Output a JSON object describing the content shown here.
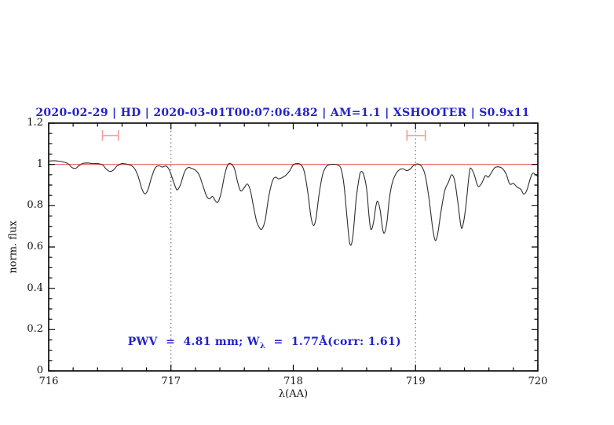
{
  "chart_data": {
    "type": "line",
    "title": "2020-02-29 | HD | 2020-03-01T00:07:06.482 | AM=1.1 | XSHOOTER | S0.9x11",
    "xlabel": "λ(AA)",
    "ylabel": "norm. flux",
    "xlim": [
      716,
      720
    ],
    "ylim": [
      0,
      1.2
    ],
    "grid": "off",
    "legend": "none",
    "x_ticks": {
      "major": [
        716,
        717,
        718,
        719,
        720
      ],
      "labels": [
        "716",
        "717",
        "718",
        "719",
        "720"
      ],
      "minor_step": 0.2
    },
    "y_ticks": {
      "major": [
        0,
        0.2,
        0.4,
        0.6,
        0.8,
        1,
        1.2
      ],
      "labels": [
        "0",
        "0.2",
        "0.4",
        "0.6",
        "0.8",
        "1",
        "1.2"
      ],
      "minor_step": 0.05
    },
    "reference_line_y": 1.0,
    "dotted_vlines_x": [
      717,
      719
    ],
    "range_markers": [
      {
        "x_from": 716.44,
        "x_to": 716.57,
        "y": 1.14,
        "cap_half_height": 0.026
      },
      {
        "x_from": 718.93,
        "x_to": 719.08,
        "y": 1.14,
        "cap_half_height": 0.026
      }
    ],
    "colors": {
      "spectrum": "#2e2e2e",
      "reference_line": "#e85c5c",
      "range_markers": "#f2a2a2",
      "dotted_lines": "#4a4a4a",
      "axis": "#000000",
      "title_blue": "#2222cc"
    },
    "series": [
      {
        "name": "normalized-telluric-spectrum",
        "points": [
          [
            716.0,
            1.016
          ],
          [
            716.04,
            1.018
          ],
          [
            716.08,
            1.016
          ],
          [
            716.12,
            1.012
          ],
          [
            716.16,
            1.003
          ],
          [
            716.19,
            0.985
          ],
          [
            716.22,
            0.981
          ],
          [
            716.25,
            0.995
          ],
          [
            716.28,
            1.005
          ],
          [
            716.32,
            1.007
          ],
          [
            716.36,
            1.004
          ],
          [
            716.4,
            1.004
          ],
          [
            716.44,
            0.998
          ],
          [
            716.47,
            0.978
          ],
          [
            716.5,
            0.966
          ],
          [
            716.53,
            0.973
          ],
          [
            716.56,
            0.993
          ],
          [
            716.6,
            1.004
          ],
          [
            716.64,
            1.001
          ],
          [
            716.67,
            0.996
          ],
          [
            716.7,
            0.982
          ],
          [
            716.73,
            0.945
          ],
          [
            716.76,
            0.885
          ],
          [
            716.785,
            0.858
          ],
          [
            716.81,
            0.875
          ],
          [
            716.84,
            0.935
          ],
          [
            716.87,
            0.982
          ],
          [
            716.9,
            0.993
          ],
          [
            716.93,
            0.987
          ],
          [
            716.96,
            0.992
          ],
          [
            716.985,
            0.975
          ],
          [
            717.01,
            0.935
          ],
          [
            717.04,
            0.885
          ],
          [
            717.055,
            0.878
          ],
          [
            717.08,
            0.905
          ],
          [
            717.11,
            0.962
          ],
          [
            717.14,
            0.985
          ],
          [
            717.17,
            0.98
          ],
          [
            717.2,
            0.972
          ],
          [
            717.23,
            0.95
          ],
          [
            717.26,
            0.9
          ],
          [
            717.29,
            0.848
          ],
          [
            717.315,
            0.833
          ],
          [
            717.34,
            0.845
          ],
          [
            717.365,
            0.822
          ],
          [
            717.385,
            0.818
          ],
          [
            717.41,
            0.862
          ],
          [
            717.44,
            0.952
          ],
          [
            717.465,
            0.998
          ],
          [
            717.49,
            1.003
          ],
          [
            717.52,
            0.978
          ],
          [
            717.545,
            0.915
          ],
          [
            717.57,
            0.872
          ],
          [
            717.6,
            0.888
          ],
          [
            717.625,
            0.905
          ],
          [
            717.65,
            0.872
          ],
          [
            717.675,
            0.795
          ],
          [
            717.7,
            0.725
          ],
          [
            717.725,
            0.692
          ],
          [
            717.745,
            0.688
          ],
          [
            717.77,
            0.73
          ],
          [
            717.8,
            0.845
          ],
          [
            717.83,
            0.92
          ],
          [
            717.855,
            0.938
          ],
          [
            717.88,
            0.93
          ],
          [
            717.91,
            0.936
          ],
          [
            717.94,
            0.948
          ],
          [
            717.97,
            0.968
          ],
          [
            718.0,
            0.998
          ],
          [
            718.03,
            1.004
          ],
          [
            718.06,
            1.0
          ],
          [
            718.09,
            0.965
          ],
          [
            718.12,
            0.86
          ],
          [
            718.145,
            0.745
          ],
          [
            718.165,
            0.705
          ],
          [
            718.185,
            0.735
          ],
          [
            718.21,
            0.85
          ],
          [
            718.24,
            0.95
          ],
          [
            718.27,
            0.99
          ],
          [
            718.3,
            0.999
          ],
          [
            718.33,
            1.001
          ],
          [
            718.36,
            0.998
          ],
          [
            718.39,
            0.98
          ],
          [
            718.415,
            0.9
          ],
          [
            718.44,
            0.74
          ],
          [
            718.46,
            0.625
          ],
          [
            718.475,
            0.613
          ],
          [
            718.49,
            0.665
          ],
          [
            718.515,
            0.835
          ],
          [
            718.54,
            0.94
          ],
          [
            718.555,
            0.965
          ],
          [
            718.575,
            0.952
          ],
          [
            718.6,
            0.88
          ],
          [
            718.62,
            0.745
          ],
          [
            718.635,
            0.685
          ],
          [
            718.655,
            0.715
          ],
          [
            718.675,
            0.795
          ],
          [
            718.69,
            0.822
          ],
          [
            718.71,
            0.78
          ],
          [
            718.73,
            0.69
          ],
          [
            718.745,
            0.668
          ],
          [
            718.765,
            0.715
          ],
          [
            718.785,
            0.83
          ],
          [
            718.81,
            0.912
          ],
          [
            718.84,
            0.955
          ],
          [
            718.87,
            0.975
          ],
          [
            718.9,
            0.978
          ],
          [
            718.93,
            0.97
          ],
          [
            718.96,
            0.98
          ],
          [
            718.99,
            0.998
          ],
          [
            719.02,
            1.002
          ],
          [
            719.05,
            0.99
          ],
          [
            719.08,
            0.945
          ],
          [
            719.11,
            0.835
          ],
          [
            719.14,
            0.69
          ],
          [
            719.16,
            0.633
          ],
          [
            719.18,
            0.66
          ],
          [
            719.21,
            0.78
          ],
          [
            719.24,
            0.875
          ],
          [
            719.27,
            0.915
          ],
          [
            719.295,
            0.95
          ],
          [
            719.32,
            0.92
          ],
          [
            719.345,
            0.82
          ],
          [
            719.37,
            0.705
          ],
          [
            719.385,
            0.7
          ],
          [
            719.41,
            0.79
          ],
          [
            719.44,
            0.96
          ],
          [
            719.455,
            0.98
          ],
          [
            719.48,
            0.95
          ],
          [
            719.51,
            0.895
          ],
          [
            719.54,
            0.908
          ],
          [
            719.57,
            0.945
          ],
          [
            719.595,
            0.938
          ],
          [
            719.62,
            0.96
          ],
          [
            719.65,
            0.985
          ],
          [
            719.68,
            0.988
          ],
          [
            719.71,
            0.98
          ],
          [
            719.74,
            0.955
          ],
          [
            719.77,
            0.905
          ],
          [
            719.8,
            0.908
          ],
          [
            719.83,
            0.89
          ],
          [
            719.86,
            0.88
          ],
          [
            719.885,
            0.856
          ],
          [
            719.91,
            0.875
          ],
          [
            719.94,
            0.935
          ],
          [
            719.96,
            0.958
          ],
          [
            719.98,
            0.95
          ],
          [
            720.0,
            0.942
          ]
        ]
      }
    ],
    "annotation_text": "PWV  =  4.81 mm; Wλ  =  1.77Å(corr: 1.61)"
  },
  "annotation": {
    "prefix": "PWV  =  4.81 mm; W",
    "subscript": "λ",
    "suffix": "  =  1.77Å(corr: 1.61)"
  }
}
